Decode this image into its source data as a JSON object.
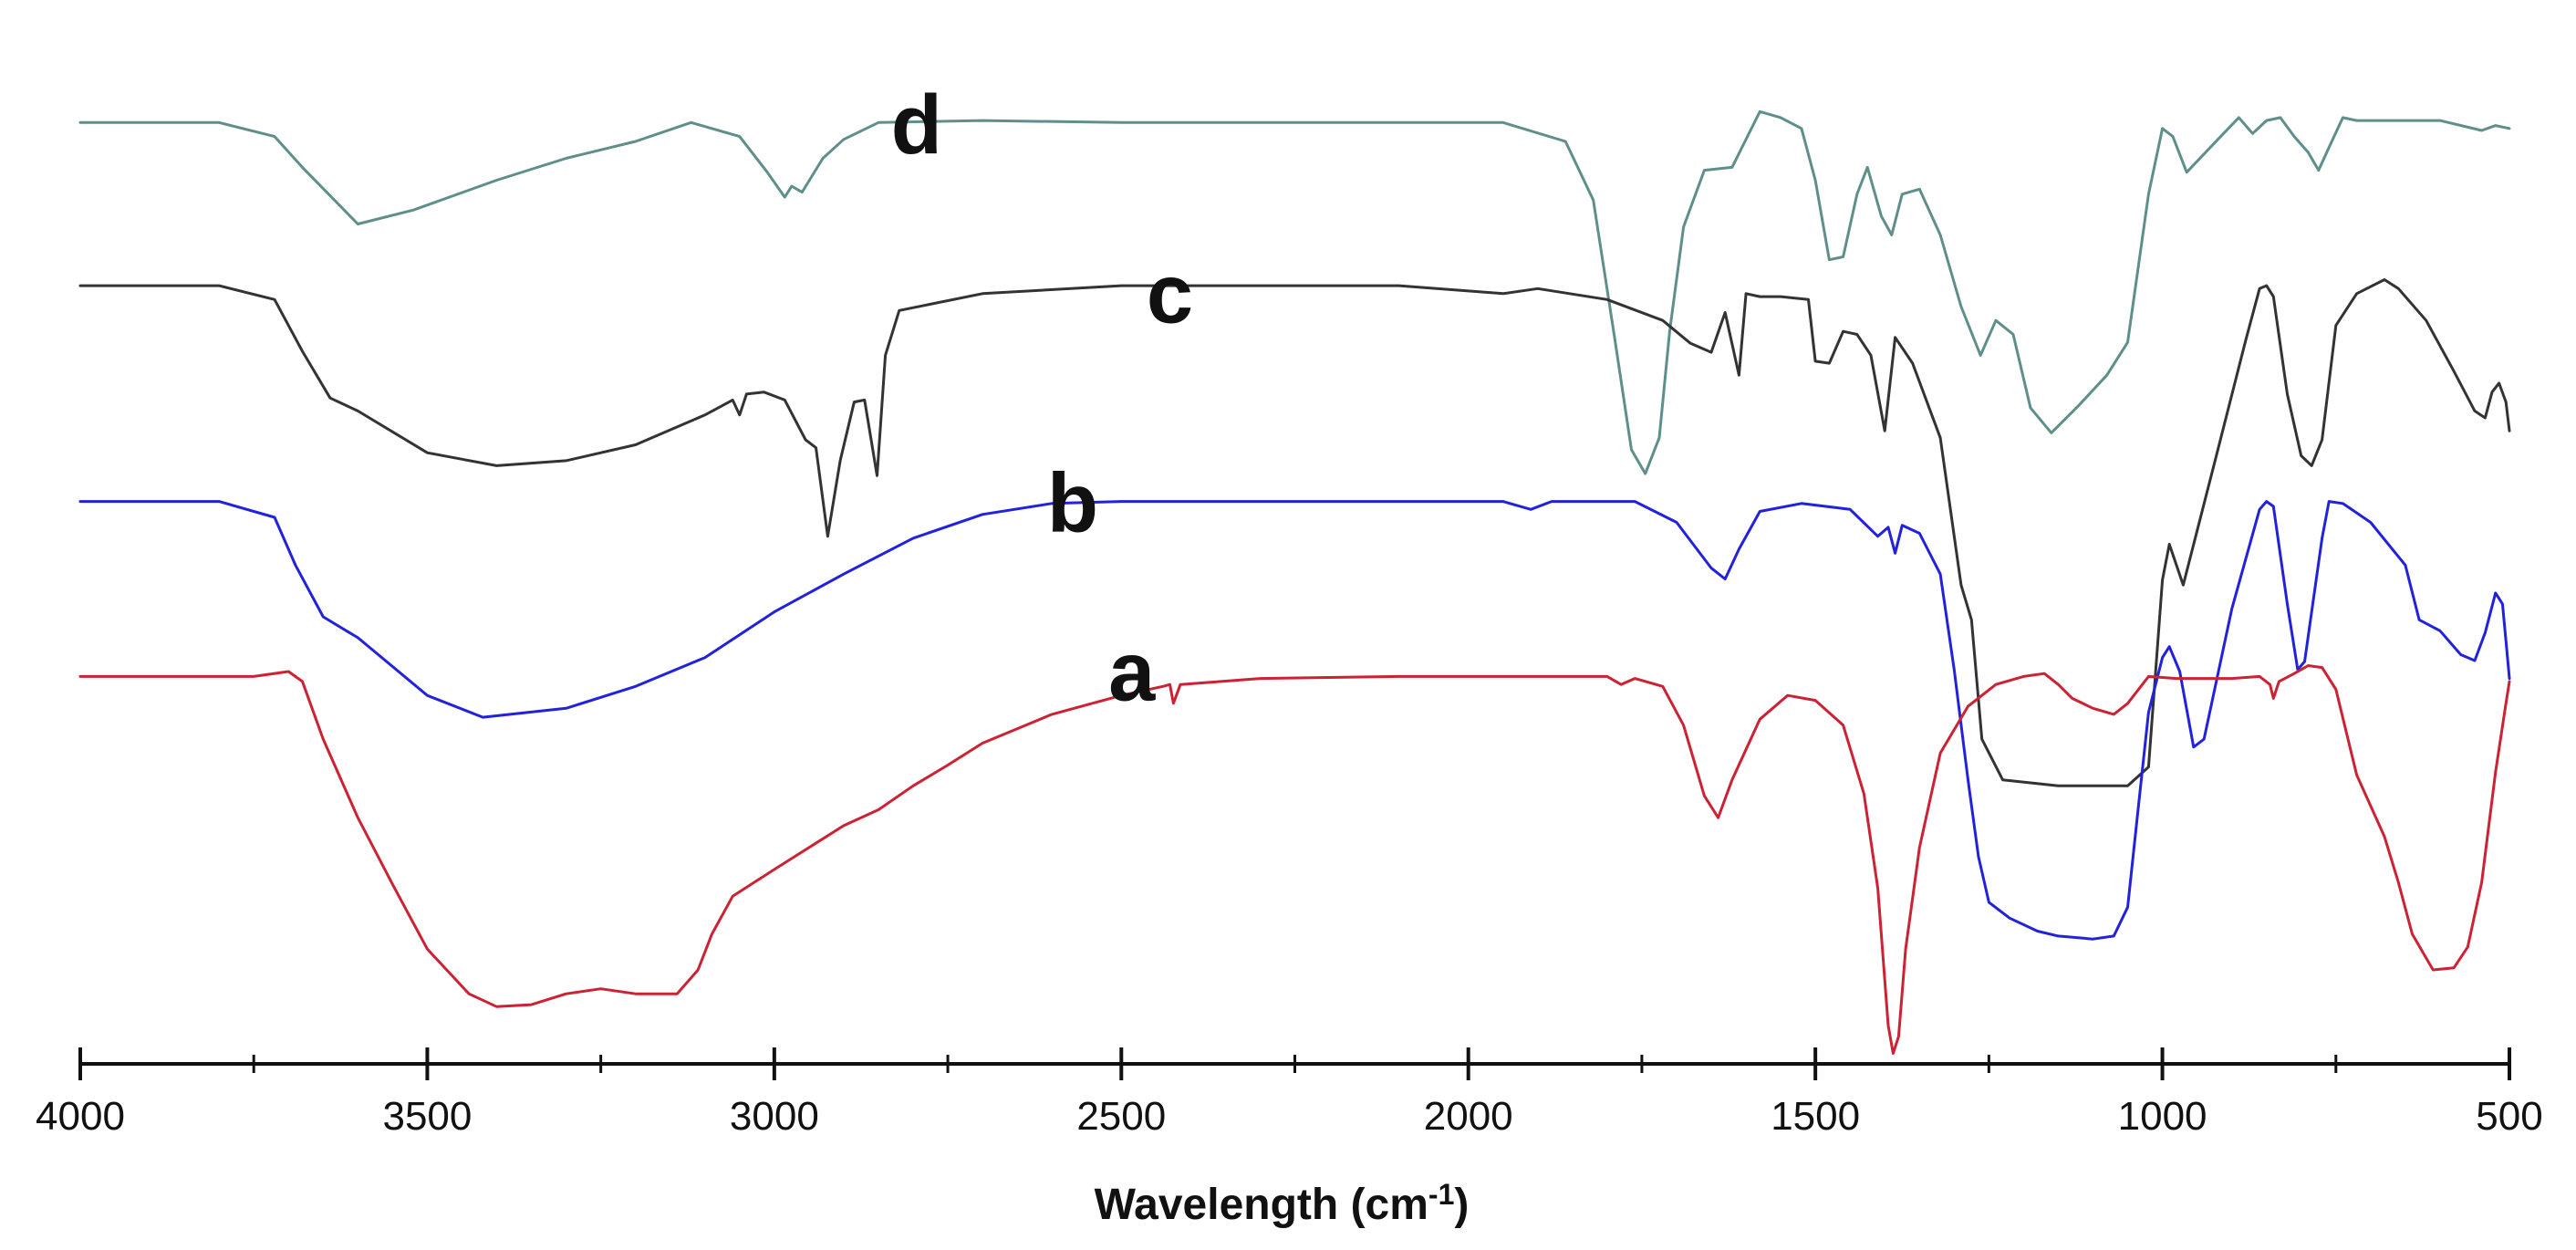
{
  "chart_data": {
    "type": "line",
    "title": "",
    "xlabel": "Wavelength (cm",
    "xlabel_superscript": "-1",
    "xlabel_suffix": ")",
    "ylabel": "",
    "xlim": [
      4000,
      500
    ],
    "x_reversed": true,
    "x_ticks": [
      4000,
      3500,
      3000,
      2500,
      2000,
      1500,
      1000,
      500
    ],
    "x_tick_labels": [
      "4000",
      "3500",
      "3000",
      "2500",
      "2000",
      "1500",
      "1000",
      "500"
    ],
    "ylim": [
      0,
      100
    ],
    "y_axis_shown": false,
    "grid": false,
    "legend": "inline-labels",
    "series": [
      {
        "name": "d",
        "color": "#5f8f8a",
        "label_x": 2795,
        "label_y": 91,
        "points": [
          [
            4000,
            94.1
          ],
          [
            3800,
            94.1
          ],
          [
            3720,
            92.7
          ],
          [
            3680,
            89.6
          ],
          [
            3600,
            83.9
          ],
          [
            3520,
            85.3
          ],
          [
            3400,
            88.3
          ],
          [
            3300,
            90.5
          ],
          [
            3200,
            92.2
          ],
          [
            3120,
            94.1
          ],
          [
            3050,
            92.7
          ],
          [
            3010,
            89.1
          ],
          [
            2985,
            86.6
          ],
          [
            2975,
            87.7
          ],
          [
            2960,
            87.1
          ],
          [
            2930,
            90.5
          ],
          [
            2900,
            92.4
          ],
          [
            2850,
            94.1
          ],
          [
            2700,
            94.3
          ],
          [
            2500,
            94.1
          ],
          [
            2200,
            94.1
          ],
          [
            1950,
            94.1
          ],
          [
            1860,
            92.2
          ],
          [
            1820,
            86.3
          ],
          [
            1790,
            72.8
          ],
          [
            1765,
            61.2
          ],
          [
            1745,
            58.8
          ],
          [
            1725,
            62.4
          ],
          [
            1710,
            73.1
          ],
          [
            1690,
            83.6
          ],
          [
            1660,
            89.3
          ],
          [
            1620,
            89.6
          ],
          [
            1580,
            95.2
          ],
          [
            1550,
            94.6
          ],
          [
            1520,
            93.5
          ],
          [
            1500,
            88.3
          ],
          [
            1480,
            80.3
          ],
          [
            1460,
            80.6
          ],
          [
            1440,
            86.9
          ],
          [
            1425,
            89.6
          ],
          [
            1405,
            84.7
          ],
          [
            1390,
            82.8
          ],
          [
            1375,
            86.9
          ],
          [
            1350,
            87.4
          ],
          [
            1320,
            82.8
          ],
          [
            1290,
            75.6
          ],
          [
            1262,
            70.7
          ],
          [
            1240,
            74.2
          ],
          [
            1215,
            72.8
          ],
          [
            1190,
            65.4
          ],
          [
            1160,
            62.9
          ],
          [
            1120,
            65.7
          ],
          [
            1080,
            68.7
          ],
          [
            1050,
            72.0
          ],
          [
            1020,
            86.9
          ],
          [
            1000,
            93.5
          ],
          [
            985,
            92.7
          ],
          [
            965,
            89.1
          ],
          [
            950,
            90.2
          ],
          [
            920,
            92.4
          ],
          [
            890,
            94.6
          ],
          [
            870,
            93.0
          ],
          [
            850,
            94.3
          ],
          [
            830,
            94.6
          ],
          [
            810,
            92.7
          ],
          [
            790,
            91.1
          ],
          [
            775,
            89.3
          ],
          [
            760,
            91.6
          ],
          [
            740,
            94.6
          ],
          [
            720,
            94.3
          ],
          [
            600,
            94.3
          ],
          [
            540,
            93.3
          ],
          [
            520,
            93.8
          ],
          [
            500,
            93.5
          ]
        ]
      },
      {
        "name": "c",
        "color": "#333333",
        "label_x": 2430,
        "label_y": 74,
        "points": [
          [
            4000,
            77.7
          ],
          [
            3800,
            77.7
          ],
          [
            3720,
            76.3
          ],
          [
            3680,
            71.1
          ],
          [
            3640,
            66.4
          ],
          [
            3600,
            65.1
          ],
          [
            3500,
            60.9
          ],
          [
            3400,
            59.6
          ],
          [
            3300,
            60.1
          ],
          [
            3200,
            61.7
          ],
          [
            3100,
            64.7
          ],
          [
            3060,
            66.2
          ],
          [
            3050,
            64.7
          ],
          [
            3040,
            66.8
          ],
          [
            3015,
            67.0
          ],
          [
            2985,
            66.2
          ],
          [
            2955,
            62.2
          ],
          [
            2940,
            61.4
          ],
          [
            2923,
            52.5
          ],
          [
            2905,
            60.1
          ],
          [
            2885,
            66.0
          ],
          [
            2870,
            66.2
          ],
          [
            2852,
            58.6
          ],
          [
            2840,
            70.7
          ],
          [
            2820,
            75.2
          ],
          [
            2700,
            76.9
          ],
          [
            2500,
            77.7
          ],
          [
            2300,
            77.7
          ],
          [
            2100,
            77.7
          ],
          [
            1950,
            76.9
          ],
          [
            1900,
            77.4
          ],
          [
            1800,
            76.3
          ],
          [
            1720,
            74.2
          ],
          [
            1680,
            71.9
          ],
          [
            1650,
            71.0
          ],
          [
            1630,
            75.0
          ],
          [
            1610,
            68.7
          ],
          [
            1600,
            76.9
          ],
          [
            1580,
            76.6
          ],
          [
            1550,
            76.6
          ],
          [
            1510,
            76.3
          ],
          [
            1500,
            70.1
          ],
          [
            1480,
            69.9
          ],
          [
            1460,
            73.1
          ],
          [
            1440,
            72.8
          ],
          [
            1420,
            70.7
          ],
          [
            1400,
            63.1
          ],
          [
            1385,
            72.5
          ],
          [
            1360,
            69.9
          ],
          [
            1320,
            62.4
          ],
          [
            1290,
            47.6
          ],
          [
            1275,
            44.1
          ],
          [
            1260,
            32.1
          ],
          [
            1230,
            28.0
          ],
          [
            1150,
            27.4
          ],
          [
            1050,
            27.4
          ],
          [
            1020,
            29.3
          ],
          [
            1000,
            48.1
          ],
          [
            990,
            51.7
          ],
          [
            970,
            47.6
          ],
          [
            920,
            61.2
          ],
          [
            880,
            72.2
          ],
          [
            860,
            77.4
          ],
          [
            850,
            77.7
          ],
          [
            840,
            76.6
          ],
          [
            820,
            66.8
          ],
          [
            800,
            60.6
          ],
          [
            785,
            59.6
          ],
          [
            770,
            62.2
          ],
          [
            750,
            73.7
          ],
          [
            720,
            76.9
          ],
          [
            680,
            78.3
          ],
          [
            660,
            77.4
          ],
          [
            620,
            74.2
          ],
          [
            580,
            69.1
          ],
          [
            550,
            65.1
          ],
          [
            535,
            64.4
          ],
          [
            525,
            67.0
          ],
          [
            515,
            67.9
          ],
          [
            505,
            66.0
          ],
          [
            500,
            63.1
          ]
        ]
      },
      {
        "name": "b",
        "color": "#2222dd",
        "label_x": 2570,
        "label_y": 53,
        "points": [
          [
            4000,
            56.0
          ],
          [
            3800,
            56.0
          ],
          [
            3720,
            54.4
          ],
          [
            3690,
            49.6
          ],
          [
            3650,
            44.4
          ],
          [
            3600,
            42.3
          ],
          [
            3500,
            36.5
          ],
          [
            3420,
            34.3
          ],
          [
            3300,
            35.2
          ],
          [
            3200,
            37.4
          ],
          [
            3100,
            40.3
          ],
          [
            3000,
            44.9
          ],
          [
            2900,
            48.7
          ],
          [
            2800,
            52.3
          ],
          [
            2700,
            54.7
          ],
          [
            2600,
            55.8
          ],
          [
            2500,
            56.0
          ],
          [
            2200,
            56.0
          ],
          [
            1950,
            56.0
          ],
          [
            1910,
            55.2
          ],
          [
            1880,
            56.0
          ],
          [
            1760,
            56.0
          ],
          [
            1700,
            53.9
          ],
          [
            1650,
            49.3
          ],
          [
            1630,
            48.2
          ],
          [
            1610,
            51.2
          ],
          [
            1580,
            55.0
          ],
          [
            1520,
            55.8
          ],
          [
            1450,
            55.2
          ],
          [
            1410,
            52.5
          ],
          [
            1395,
            53.4
          ],
          [
            1385,
            50.8
          ],
          [
            1375,
            53.6
          ],
          [
            1350,
            52.8
          ],
          [
            1320,
            48.7
          ],
          [
            1300,
            39.1
          ],
          [
            1280,
            28.0
          ],
          [
            1265,
            20.3
          ],
          [
            1250,
            15.7
          ],
          [
            1220,
            14.1
          ],
          [
            1180,
            12.8
          ],
          [
            1150,
            12.3
          ],
          [
            1100,
            12.0
          ],
          [
            1070,
            12.3
          ],
          [
            1050,
            15.2
          ],
          [
            1035,
            25.0
          ],
          [
            1020,
            34.8
          ],
          [
            1000,
            40.3
          ],
          [
            990,
            41.4
          ],
          [
            975,
            38.9
          ],
          [
            955,
            31.3
          ],
          [
            940,
            32.1
          ],
          [
            900,
            45.2
          ],
          [
            860,
            55.2
          ],
          [
            850,
            56.0
          ],
          [
            840,
            55.5
          ],
          [
            820,
            45.7
          ],
          [
            805,
            39.1
          ],
          [
            795,
            39.9
          ],
          [
            770,
            52.3
          ],
          [
            760,
            56.0
          ],
          [
            740,
            55.8
          ],
          [
            700,
            53.9
          ],
          [
            650,
            49.6
          ],
          [
            630,
            44.1
          ],
          [
            600,
            43.0
          ],
          [
            570,
            40.6
          ],
          [
            550,
            40.0
          ],
          [
            535,
            42.8
          ],
          [
            520,
            46.8
          ],
          [
            510,
            45.7
          ],
          [
            505,
            42.0
          ],
          [
            500,
            38.2
          ]
        ]
      },
      {
        "name": "a",
        "color": "#cc2233",
        "label_x": 2485,
        "label_y": 36,
        "points": [
          [
            4000,
            38.4
          ],
          [
            3750,
            38.4
          ],
          [
            3700,
            38.9
          ],
          [
            3680,
            37.9
          ],
          [
            3650,
            32.1
          ],
          [
            3600,
            24.2
          ],
          [
            3550,
            17.5
          ],
          [
            3500,
            11.0
          ],
          [
            3440,
            6.5
          ],
          [
            3400,
            5.2
          ],
          [
            3350,
            5.4
          ],
          [
            3300,
            6.5
          ],
          [
            3250,
            7.0
          ],
          [
            3200,
            6.5
          ],
          [
            3140,
            6.5
          ],
          [
            3110,
            8.9
          ],
          [
            3090,
            12.5
          ],
          [
            3060,
            16.3
          ],
          [
            3000,
            19.0
          ],
          [
            2950,
            21.2
          ],
          [
            2900,
            23.4
          ],
          [
            2850,
            25.0
          ],
          [
            2800,
            27.4
          ],
          [
            2750,
            29.5
          ],
          [
            2700,
            31.7
          ],
          [
            2600,
            34.6
          ],
          [
            2500,
            36.5
          ],
          [
            2440,
            37.4
          ],
          [
            2430,
            37.6
          ],
          [
            2425,
            35.7
          ],
          [
            2415,
            37.6
          ],
          [
            2300,
            38.2
          ],
          [
            2100,
            38.4
          ],
          [
            1800,
            38.4
          ],
          [
            1780,
            37.6
          ],
          [
            1760,
            38.2
          ],
          [
            1720,
            37.4
          ],
          [
            1690,
            33.5
          ],
          [
            1660,
            26.4
          ],
          [
            1640,
            24.2
          ],
          [
            1620,
            28.0
          ],
          [
            1580,
            34.1
          ],
          [
            1540,
            36.5
          ],
          [
            1500,
            36.0
          ],
          [
            1460,
            33.5
          ],
          [
            1430,
            26.6
          ],
          [
            1410,
            17.1
          ],
          [
            1395,
            3.3
          ],
          [
            1388,
            0.5
          ],
          [
            1380,
            2.2
          ],
          [
            1370,
            11.0
          ],
          [
            1350,
            21.2
          ],
          [
            1320,
            30.7
          ],
          [
            1280,
            35.4
          ],
          [
            1240,
            37.6
          ],
          [
            1200,
            38.4
          ],
          [
            1170,
            38.7
          ],
          [
            1150,
            37.6
          ],
          [
            1130,
            36.2
          ],
          [
            1100,
            35.2
          ],
          [
            1070,
            34.6
          ],
          [
            1050,
            35.7
          ],
          [
            1020,
            38.4
          ],
          [
            980,
            38.2
          ],
          [
            900,
            38.2
          ],
          [
            860,
            38.4
          ],
          [
            845,
            37.6
          ],
          [
            840,
            36.2
          ],
          [
            832,
            37.9
          ],
          [
            810,
            38.7
          ],
          [
            790,
            39.5
          ],
          [
            770,
            39.3
          ],
          [
            750,
            37.1
          ],
          [
            720,
            28.5
          ],
          [
            680,
            22.3
          ],
          [
            660,
            17.7
          ],
          [
            640,
            12.5
          ],
          [
            610,
            8.9
          ],
          [
            580,
            9.1
          ],
          [
            560,
            11.2
          ],
          [
            540,
            17.7
          ],
          [
            520,
            28.8
          ],
          [
            505,
            35.7
          ],
          [
            500,
            37.9
          ]
        ]
      }
    ]
  }
}
